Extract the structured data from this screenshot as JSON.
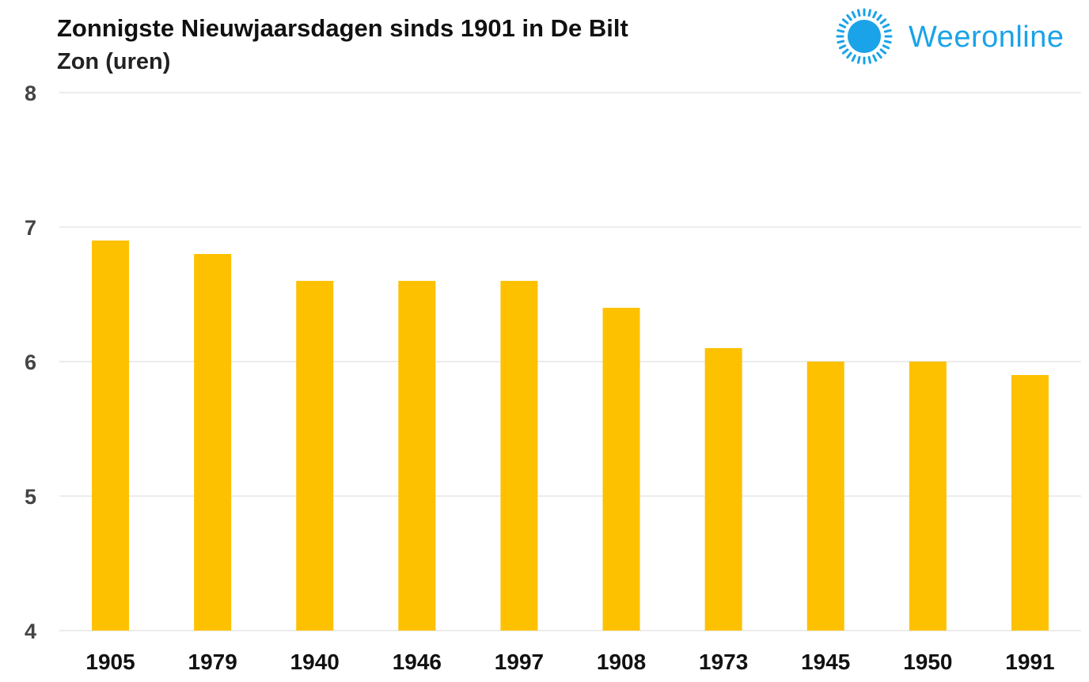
{
  "header": {
    "title": "Zonnigste Nieuwjaarsdagen sinds 1901 in De Bilt",
    "subtitle": "Zon (uren)"
  },
  "logo": {
    "text": "Weeronline",
    "icon": "sun-icon",
    "color": "#1aa3e8"
  },
  "colors": {
    "bar": "#fdc100",
    "grid": "#e6e6e6"
  },
  "chart_data": {
    "type": "bar",
    "title": "Zonnigste Nieuwjaarsdagen sinds 1901 in De Bilt",
    "subtitle": "Zon (uren)",
    "xlabel": "",
    "ylabel": "",
    "categories": [
      "1905",
      "1979",
      "1940",
      "1946",
      "1997",
      "1908",
      "1973",
      "1945",
      "1950",
      "1991"
    ],
    "values": [
      6.9,
      6.8,
      6.6,
      6.6,
      6.6,
      6.4,
      6.1,
      6.0,
      6.0,
      5.9
    ],
    "ylim": [
      4,
      8
    ],
    "yticks": [
      4,
      5,
      6,
      7,
      8
    ],
    "grid": true,
    "legend": "none"
  }
}
